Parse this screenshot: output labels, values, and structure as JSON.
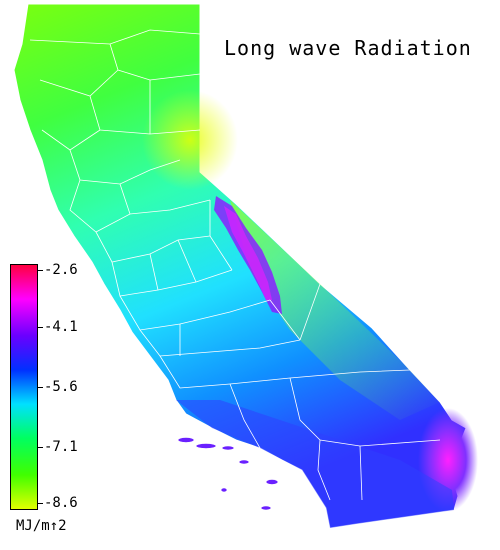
{
  "map": {
    "title": "Long wave Radiation",
    "region": "California",
    "units": "MJ/m↑2"
  },
  "legend": {
    "ticks": [
      "-2.6",
      "-4.1",
      "-5.6",
      "-7.1",
      "-8.6"
    ],
    "colors": [
      "#ff0040",
      "#ff00ff",
      "#6a00ff",
      "#0030ff",
      "#00e0ff",
      "#00ff60",
      "#40ff00",
      "#e0ff00"
    ]
  }
}
